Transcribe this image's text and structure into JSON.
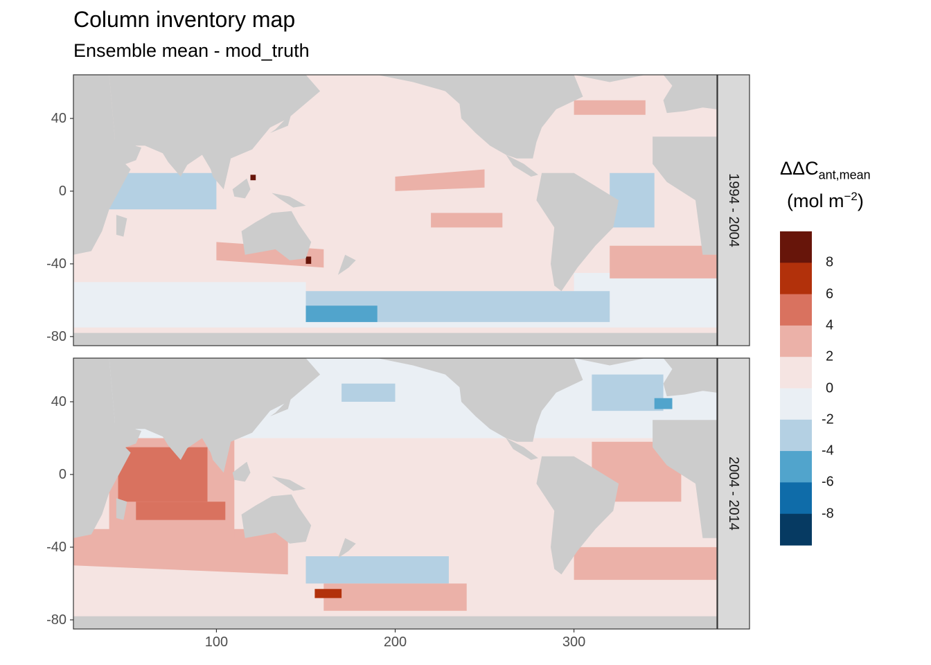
{
  "title": "Column inventory map",
  "subtitle": "Ensemble mean - mod_truth",
  "chart_data": {
    "type": "heatmap",
    "title": "Column inventory map",
    "subtitle": "Ensemble mean - mod_truth",
    "xlabel": "",
    "ylabel": "",
    "xlim": [
      20,
      380
    ],
    "ylim": [
      -85,
      64
    ],
    "x_ticks": [
      100,
      200,
      300
    ],
    "y_ticks": [
      40,
      0,
      -40,
      -80
    ],
    "panels": [
      {
        "label": "1994 - 2004"
      },
      {
        "label": "2004 - 2014"
      }
    ],
    "legend": {
      "title_main": "ΔΔC",
      "title_sub": "ant,mean",
      "unit_pre": "(mol m",
      "unit_sup": "−2",
      "unit_post": ")",
      "placement": "right",
      "bin_labels": [
        "8",
        "6",
        "4",
        "2",
        "0",
        "-2",
        "-4",
        "-6",
        "-8"
      ],
      "bins": [
        {
          "range": [
            8,
            10
          ],
          "color": "#67150a"
        },
        {
          "range": [
            6,
            8
          ],
          "color": "#b2310b"
        },
        {
          "range": [
            4,
            6
          ],
          "color": "#d9725f"
        },
        {
          "range": [
            2,
            4
          ],
          "color": "#ebb1a8"
        },
        {
          "range": [
            0,
            2
          ],
          "color": "#f5e4e2"
        },
        {
          "range": [
            -2,
            0
          ],
          "color": "#eaeff4"
        },
        {
          "range": [
            -4,
            -2
          ],
          "color": "#b4d0e3"
        },
        {
          "range": [
            -6,
            -4
          ],
          "color": "#51a4cc"
        },
        {
          "range": [
            -8,
            -6
          ],
          "color": "#0f6ca9"
        },
        {
          "range": [
            -10,
            -8
          ],
          "color": "#063a62"
        }
      ]
    },
    "land_color": "#cccccc"
  }
}
